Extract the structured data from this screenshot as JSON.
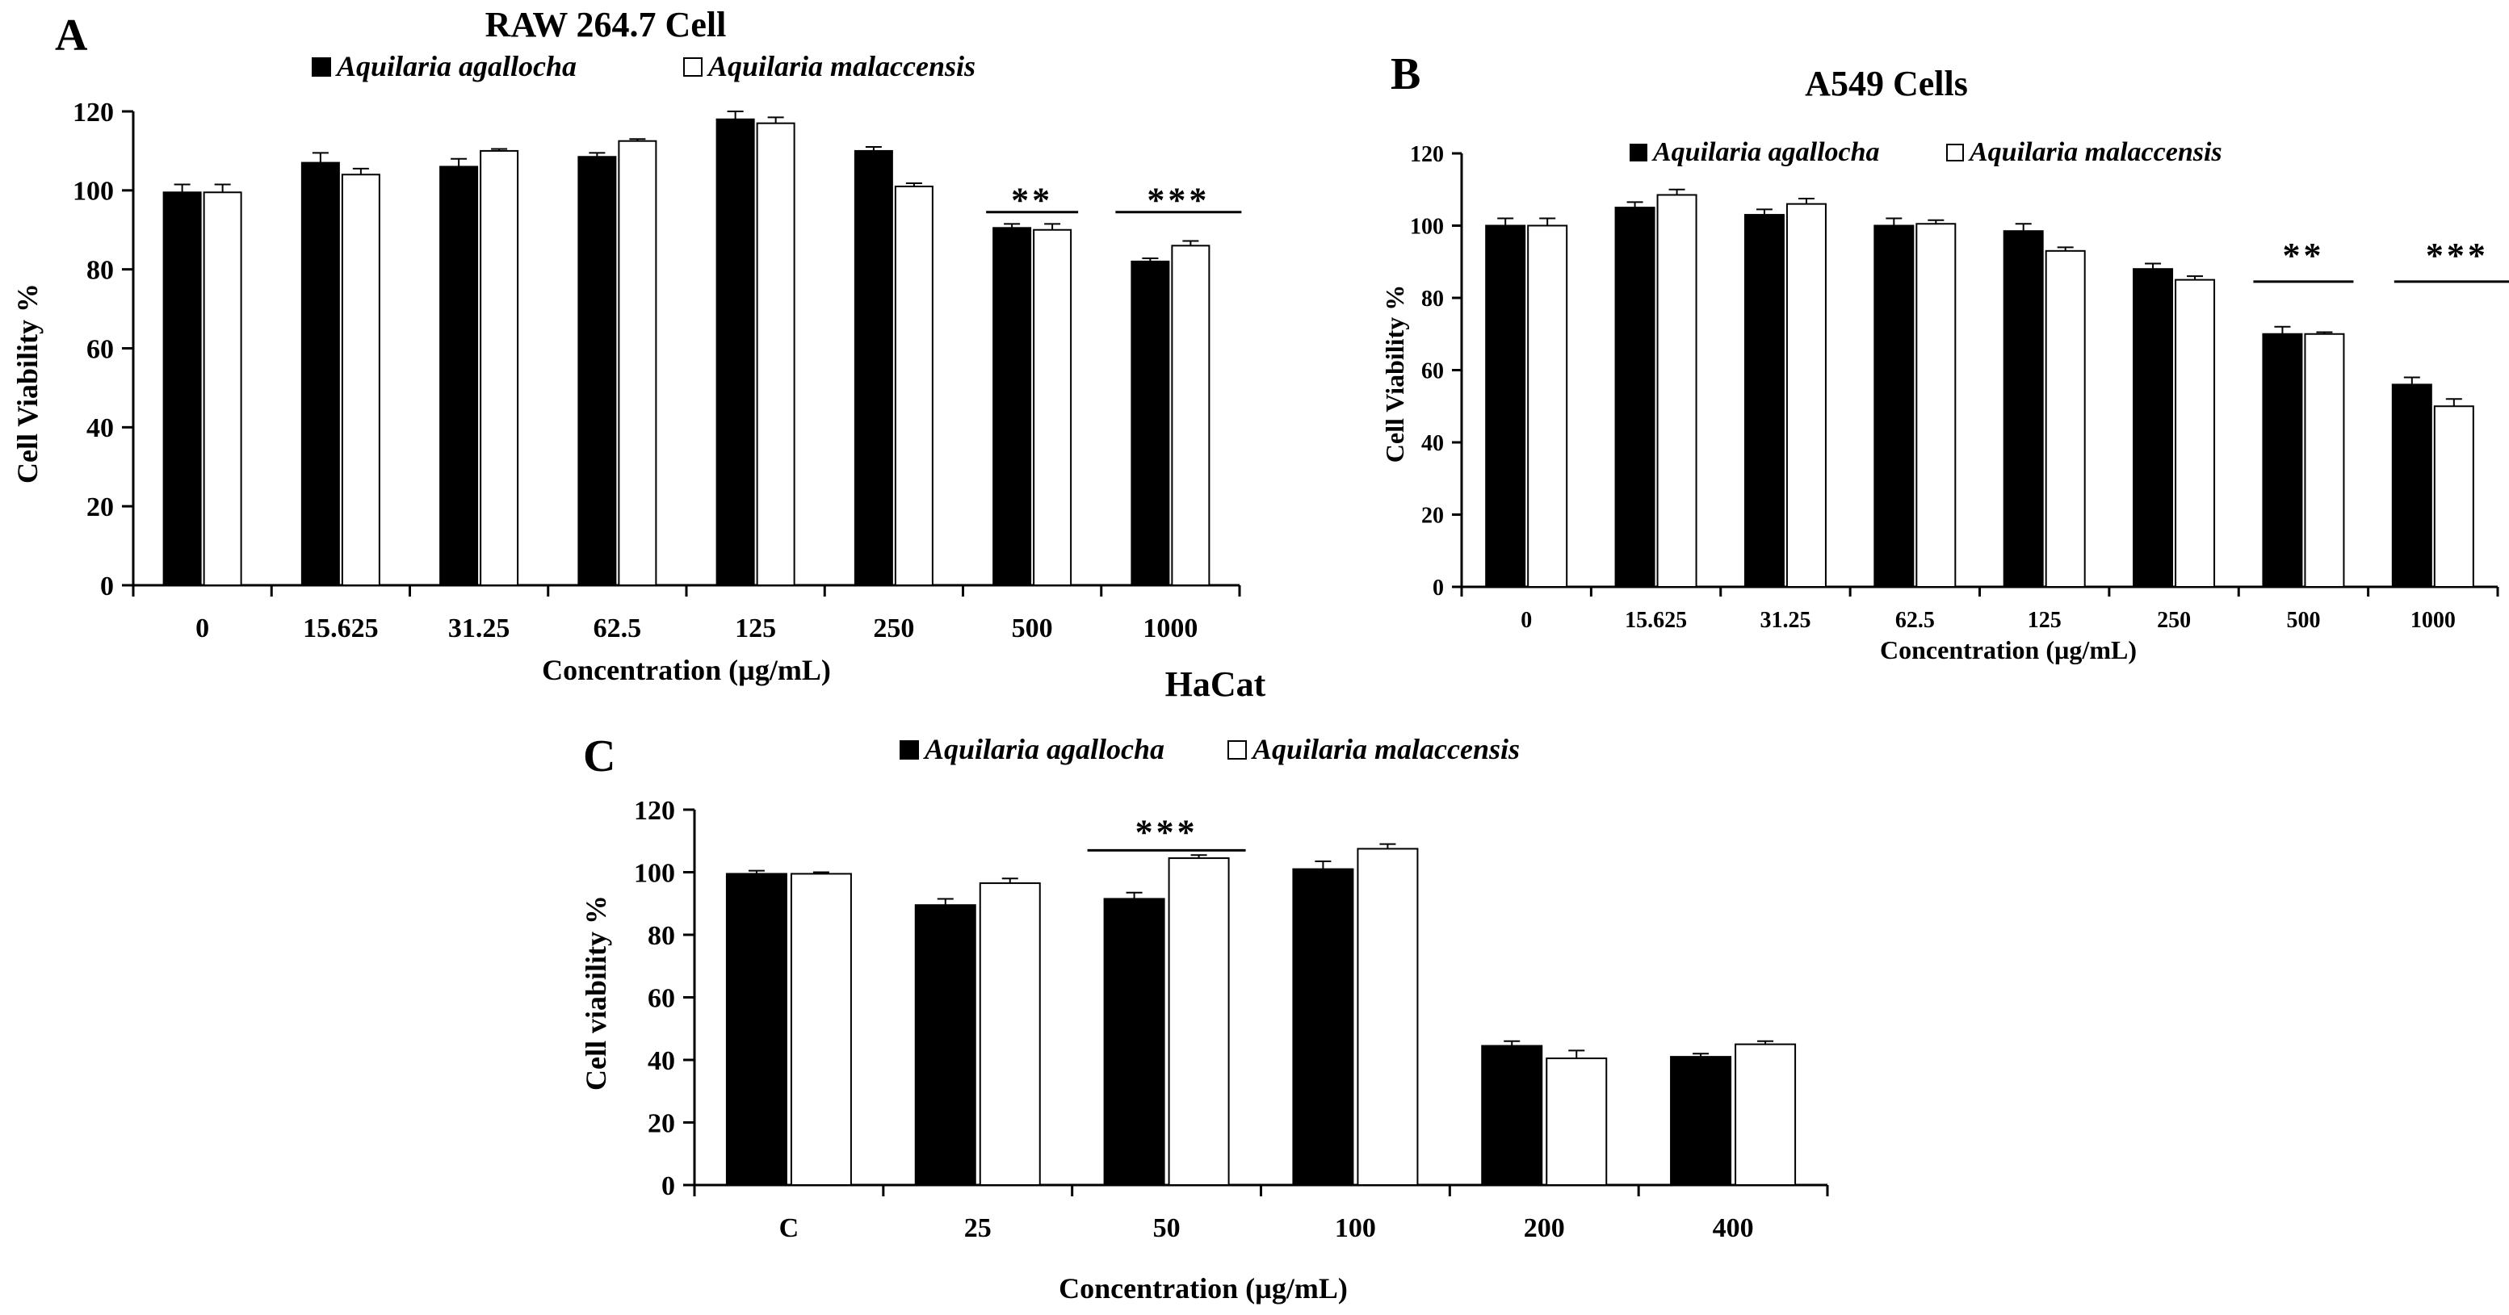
{
  "chart_data": [
    {
      "type": "bar",
      "panel_label": "A",
      "title": "RAW 264.7 Cell",
      "xlabel": "Concentration (µg/mL)",
      "ylabel": "Cell Viability %",
      "ylim": [
        0,
        120
      ],
      "yticks": [
        "0",
        "20",
        "40",
        "60",
        "80",
        "100",
        "120"
      ],
      "categories": [
        "0",
        "15.625",
        "31.25",
        "62.5",
        "125",
        "250",
        "500",
        "1000"
      ],
      "series": [
        {
          "name": "Aquilaria agallocha",
          "color": "#000000",
          "values": [
            99.5,
            107,
            106,
            108.5,
            118,
            110,
            90.5,
            82
          ],
          "errors": [
            2,
            2.5,
            2,
            1,
            2,
            1,
            1,
            0.8
          ]
        },
        {
          "name": "Aquilaria malaccensis",
          "color": "#ffffff",
          "values": [
            99.5,
            104,
            110,
            112.5,
            117,
            101,
            90,
            86
          ],
          "errors": [
            2,
            1.5,
            0.5,
            0.5,
            1.5,
            0.8,
            1.5,
            1.2
          ]
        }
      ],
      "significance": [
        {
          "category": "500",
          "label": "**"
        },
        {
          "category": "1000",
          "label": "***"
        }
      ]
    },
    {
      "type": "bar",
      "panel_label": "B",
      "title": "A549 Cells",
      "xlabel": "Concentration (µg/mL)",
      "ylabel": "Cell Viability %",
      "ylim": [
        0,
        120
      ],
      "yticks": [
        "0",
        "20",
        "40",
        "60",
        "80",
        "100",
        "120"
      ],
      "categories": [
        "0",
        "15.625",
        "31.25",
        "62.5",
        "125",
        "250",
        "500",
        "1000"
      ],
      "series": [
        {
          "name": "Aquilaria agallocha",
          "color": "#000000",
          "values": [
            100,
            105,
            103,
            100,
            98.5,
            88,
            70,
            56
          ],
          "errors": [
            2,
            1.5,
            1.5,
            2,
            2,
            1.5,
            2,
            2
          ]
        },
        {
          "name": "Aquilaria malaccensis",
          "color": "#ffffff",
          "values": [
            100,
            108.5,
            106,
            100.5,
            93,
            85,
            70,
            50
          ],
          "errors": [
            2,
            1.5,
            1.5,
            1,
            1,
            1,
            0.5,
            2
          ]
        }
      ],
      "significance": [
        {
          "category": "500",
          "label": "**"
        },
        {
          "category": "1000",
          "label": "***"
        }
      ]
    },
    {
      "type": "bar",
      "panel_label": "C",
      "title": "HaCat",
      "xlabel": "Concentration (µg/mL)",
      "ylabel": "Cell viability  %",
      "ylim": [
        0,
        120
      ],
      "yticks": [
        "0",
        "20",
        "40",
        "60",
        "80",
        "100",
        "120"
      ],
      "categories": [
        "C",
        "25",
        "50",
        "100",
        "200",
        "400"
      ],
      "series": [
        {
          "name": "Aquilaria agallocha",
          "color": "#000000",
          "values": [
            99.5,
            89.5,
            91.5,
            101,
            44.5,
            41
          ],
          "errors": [
            1,
            2,
            2,
            2.5,
            1.5,
            1
          ]
        },
        {
          "name": "Aquilaria malaccensis",
          "color": "#ffffff",
          "values": [
            99.5,
            96.5,
            104.5,
            107.5,
            40.5,
            45
          ],
          "errors": [
            0.5,
            1.5,
            1,
            1.5,
            2.5,
            1
          ]
        }
      ],
      "significance": [
        {
          "category": "50",
          "label": "***"
        }
      ]
    }
  ]
}
